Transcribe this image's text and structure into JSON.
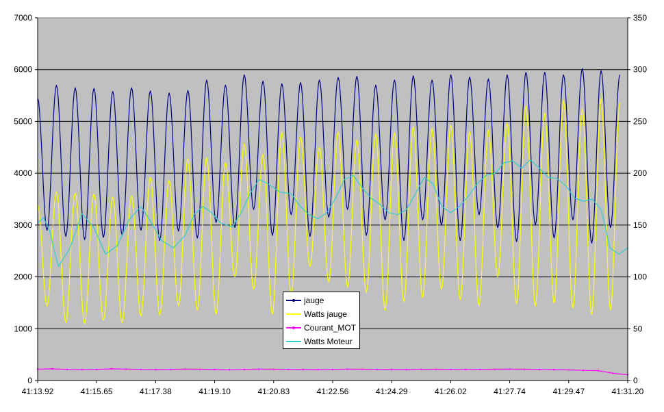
{
  "chart_data": {
    "type": "line",
    "title": "",
    "xlabel": "",
    "ylabel": "",
    "x_ticks": [
      "41:13.92",
      "41:15.65",
      "41:17.38",
      "41:19.10",
      "41:20.83",
      "41:22.56",
      "41:24.29",
      "41:26.02",
      "41:27.74",
      "41:29.47",
      "41:31.20"
    ],
    "x_range_seconds": [
      2473.92,
      2491.2
    ],
    "ylim": [
      0,
      7000
    ],
    "y_ticks": [
      0,
      1000,
      2000,
      3000,
      4000,
      5000,
      6000,
      7000
    ],
    "y2lim": [
      0,
      350
    ],
    "y2_ticks": [
      0,
      50,
      100,
      150,
      200,
      250,
      300,
      350
    ],
    "grid": "horizontal",
    "legend_position": "bottom-center",
    "plot_background": "#c0c0c0",
    "series": [
      {
        "name": "jauge",
        "axis": "left",
        "color": "#000080",
        "marker": "small-dot",
        "period_seconds": 0.55,
        "peaks": [
          5450,
          5700,
          5650,
          5640,
          5580,
          5650,
          5590,
          5550,
          5600,
          5800,
          5700,
          5900,
          5780,
          5730,
          5750,
          5800,
          5850,
          5870,
          5700,
          5800,
          5880,
          5800,
          5900,
          5860,
          5820,
          5900,
          5950,
          5950,
          5900,
          6020,
          5980,
          5900,
          5950,
          5700,
          5700,
          5000,
          4900
        ],
        "troughs": [
          2900,
          2780,
          2720,
          2760,
          2800,
          2900,
          2700,
          2880,
          2750,
          3050,
          2950,
          3300,
          2800,
          3200,
          2780,
          3150,
          3300,
          2800,
          3100,
          2700,
          3100,
          3000,
          2700,
          3200,
          2950,
          2680,
          3000,
          2750,
          3100,
          2650,
          2950,
          2800,
          3050,
          3200,
          2800,
          2700,
          2500
        ]
      },
      {
        "name": "Watts jauge",
        "axis": "right",
        "color": "#ffff00",
        "period_seconds": 0.55,
        "peaks": [
          170,
          182,
          181,
          180,
          177,
          178,
          196,
          193,
          214,
          215,
          210,
          228,
          218,
          240,
          235,
          225,
          240,
          232,
          238,
          239,
          245,
          243,
          246,
          240,
          242,
          248,
          265,
          258,
          270,
          262,
          272,
          268,
          290,
          268,
          273,
          220,
          205
        ],
        "troughs": [
          72,
          56,
          55,
          58,
          56,
          62,
          63,
          72,
          68,
          64,
          100,
          88,
          64,
          83,
          110,
          95,
          90,
          85,
          68,
          76,
          80,
          88,
          78,
          72,
          100,
          74,
          72,
          75,
          70,
          64,
          68,
          70,
          72,
          75,
          100,
          80,
          65
        ]
      },
      {
        "name": "Courant_MOT",
        "axis": "left",
        "color": "#ff00ff",
        "marker": "small-dot",
        "x": [
          0,
          1,
          2,
          3,
          4,
          5,
          6,
          7,
          8,
          9,
          10,
          11,
          12,
          13,
          14,
          15,
          16,
          17,
          18,
          19,
          20,
          21,
          22,
          23,
          24,
          25,
          26,
          27,
          28,
          29,
          30,
          31,
          32,
          33,
          34,
          35,
          36,
          37,
          38,
          39,
          40
        ],
        "values": [
          220,
          225,
          215,
          210,
          215,
          225,
          220,
          215,
          210,
          215,
          220,
          218,
          212,
          208,
          215,
          220,
          218,
          215,
          212,
          210,
          215,
          220,
          218,
          215,
          212,
          210,
          215,
          218,
          215,
          212,
          215,
          218,
          220,
          218,
          215,
          210,
          205,
          195,
          190,
          140,
          110
        ]
      },
      {
        "name": "Watts Moteur",
        "axis": "right",
        "color": "#33cccc",
        "x_fraction": [
          0,
          0.01,
          0.02,
          0.035,
          0.055,
          0.075,
          0.095,
          0.115,
          0.135,
          0.155,
          0.175,
          0.19,
          0.21,
          0.23,
          0.25,
          0.265,
          0.28,
          0.295,
          0.31,
          0.33,
          0.345,
          0.36,
          0.375,
          0.39,
          0.41,
          0.43,
          0.445,
          0.46,
          0.475,
          0.49,
          0.505,
          0.52,
          0.535,
          0.55,
          0.565,
          0.58,
          0.595,
          0.61,
          0.625,
          0.64,
          0.655,
          0.67,
          0.685,
          0.7,
          0.715,
          0.73,
          0.745,
          0.76,
          0.775,
          0.79,
          0.805,
          0.82,
          0.835,
          0.85,
          0.865,
          0.88,
          0.895,
          0.91,
          0.925,
          0.94,
          0.955,
          0.97,
          0.985,
          1.0
        ],
        "values": [
          152,
          157,
          145,
          110,
          128,
          161,
          148,
          122,
          130,
          155,
          168,
          155,
          135,
          128,
          140,
          160,
          168,
          162,
          152,
          148,
          162,
          180,
          194,
          190,
          182,
          180,
          168,
          160,
          156,
          162,
          176,
          194,
          198,
          186,
          176,
          170,
          162,
          160,
          165,
          180,
          196,
          190,
          168,
          162,
          168,
          178,
          190,
          198,
          200,
          210,
          212,
          205,
          213,
          205,
          196,
          195,
          188,
          176,
          173,
          175,
          165,
          128,
          122,
          128
        ]
      }
    ]
  }
}
